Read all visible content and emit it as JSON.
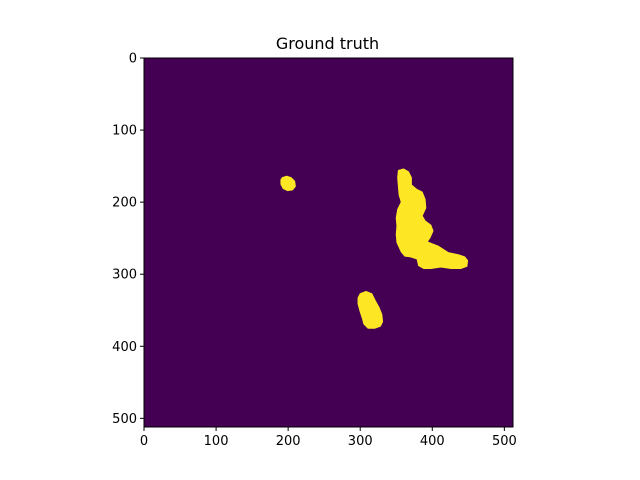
{
  "chart_data": {
    "type": "heatmap",
    "title": "Ground truth",
    "xlabel": "",
    "ylabel": "",
    "xlim": [
      0,
      512
    ],
    "ylim": [
      512,
      0
    ],
    "x_ticks": [
      0,
      100,
      200,
      300,
      400,
      500
    ],
    "y_ticks": [
      0,
      100,
      200,
      300,
      400,
      500
    ],
    "grid": false,
    "colormap": "viridis",
    "colors": {
      "background": "#440154",
      "foreground": "#fde725"
    },
    "regions": [
      {
        "name": "small-blob",
        "points": [
          [
            192,
            166
          ],
          [
            198,
            164
          ],
          [
            204,
            166
          ],
          [
            209,
            171
          ],
          [
            210,
            178
          ],
          [
            206,
            183
          ],
          [
            199,
            184
          ],
          [
            193,
            181
          ],
          [
            190,
            175
          ],
          [
            190,
            169
          ]
        ]
      },
      {
        "name": "large-blob",
        "points": [
          [
            353,
            156
          ],
          [
            360,
            154
          ],
          [
            367,
            158
          ],
          [
            371,
            166
          ],
          [
            371,
            176
          ],
          [
            378,
            182
          ],
          [
            386,
            186
          ],
          [
            390,
            196
          ],
          [
            391,
            208
          ],
          [
            386,
            219
          ],
          [
            390,
            226
          ],
          [
            398,
            232
          ],
          [
            401,
            240
          ],
          [
            397,
            249
          ],
          [
            393,
            255
          ],
          [
            408,
            261
          ],
          [
            422,
            270
          ],
          [
            436,
            273
          ],
          [
            445,
            276
          ],
          [
            449,
            281
          ],
          [
            448,
            289
          ],
          [
            440,
            292
          ],
          [
            426,
            292
          ],
          [
            412,
            290
          ],
          [
            398,
            292
          ],
          [
            388,
            292
          ],
          [
            381,
            288
          ],
          [
            379,
            279
          ],
          [
            370,
            276
          ],
          [
            362,
            275
          ],
          [
            357,
            269
          ],
          [
            351,
            256
          ],
          [
            350,
            245
          ],
          [
            351,
            233
          ],
          [
            350,
            222
          ],
          [
            352,
            210
          ],
          [
            357,
            200
          ],
          [
            354,
            190
          ],
          [
            353,
            178
          ],
          [
            352,
            166
          ]
        ]
      },
      {
        "name": "bottom-blob",
        "points": [
          [
            300,
            327
          ],
          [
            308,
            324
          ],
          [
            316,
            327
          ],
          [
            321,
            337
          ],
          [
            326,
            346
          ],
          [
            330,
            356
          ],
          [
            331,
            366
          ],
          [
            328,
            372
          ],
          [
            320,
            375
          ],
          [
            311,
            375
          ],
          [
            305,
            369
          ],
          [
            303,
            361
          ],
          [
            300,
            352
          ],
          [
            297,
            341
          ],
          [
            297,
            333
          ]
        ]
      }
    ]
  }
}
